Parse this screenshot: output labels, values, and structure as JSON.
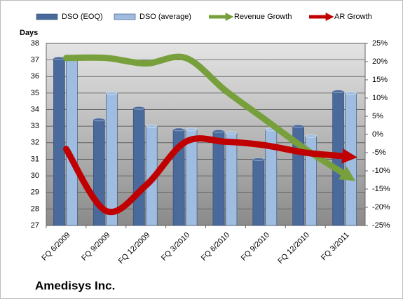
{
  "chart_data": {
    "type": "bar",
    "title": "Amedisys Inc.",
    "y_label": "Days",
    "categories": [
      "FQ 6/2009",
      "FQ 9/2009",
      "FQ 12/2009",
      "FQ 3/2010",
      "FQ 6/2010",
      "FQ 9/2010",
      "FQ 12/2010",
      "FQ 3/2011"
    ],
    "series": [
      {
        "name": "DSO (EOQ)",
        "type": "bar",
        "color": "#4a6a9c",
        "values": [
          37.1,
          33.4,
          34.1,
          32.8,
          32.7,
          31.0,
          33.0,
          35.1
        ]
      },
      {
        "name": "DSO (average)",
        "type": "bar",
        "color": "#9fbde0",
        "values": [
          37.1,
          35.0,
          33.0,
          32.8,
          32.6,
          32.8,
          32.4,
          35.0
        ]
      },
      {
        "name": "Revenue Growth",
        "type": "line",
        "axis": "y2",
        "color": "#77a03c",
        "values": [
          21,
          21,
          19.5,
          21,
          12,
          4,
          -4,
          -11
        ]
      },
      {
        "name": "AR Growth",
        "type": "line",
        "axis": "y2",
        "color": "#c00000",
        "values": [
          -4,
          -21,
          -14,
          -2,
          -2,
          -3,
          -5,
          -6
        ]
      }
    ],
    "ylim": [
      27,
      38
    ],
    "yticks": [
      27,
      28,
      29,
      30,
      31,
      32,
      33,
      34,
      35,
      36,
      37,
      38
    ],
    "y2lim": [
      -25,
      25
    ],
    "y2ticks": [
      {
        "value": -25,
        "label": "-25%"
      },
      {
        "value": -20,
        "label": "-20%"
      },
      {
        "value": -15,
        "label": "-15%"
      },
      {
        "value": -10,
        "label": "-10%"
      },
      {
        "value": -5,
        "label": "-5%"
      },
      {
        "value": 0,
        "label": "0%"
      },
      {
        "value": 5,
        "label": "5%"
      },
      {
        "value": 10,
        "label": "10%"
      },
      {
        "value": 15,
        "label": "15%"
      },
      {
        "value": 20,
        "label": "20%"
      },
      {
        "value": 25,
        "label": "25%"
      }
    ],
    "grid": true
  }
}
